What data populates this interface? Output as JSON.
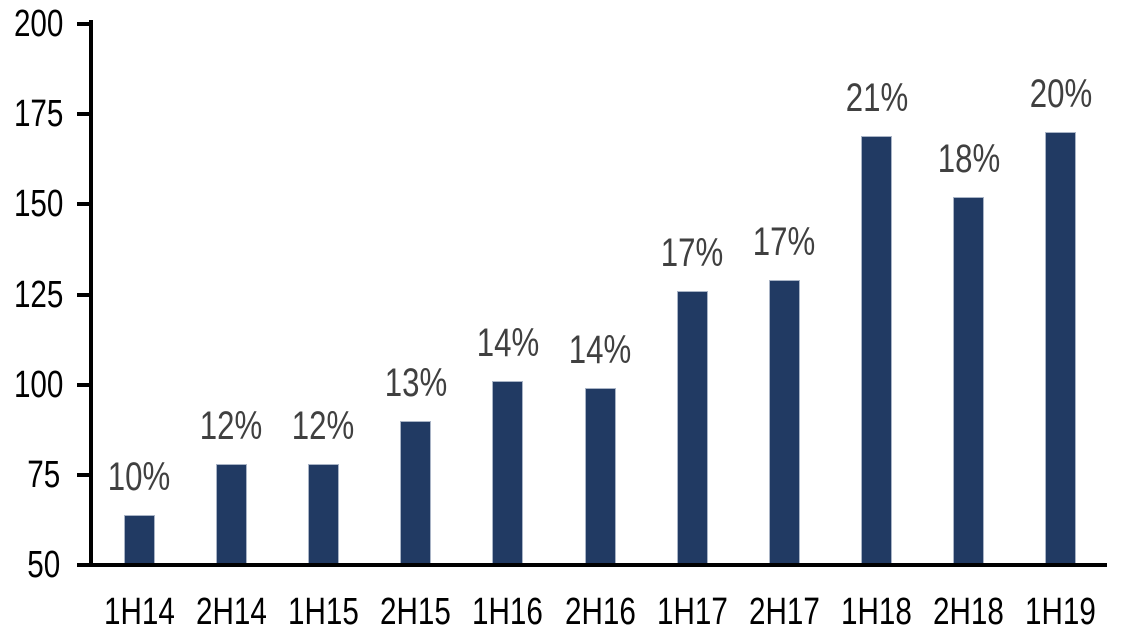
{
  "chart_data": {
    "type": "bar",
    "title": "",
    "xlabel": "",
    "ylabel": "",
    "categories": [
      "1H14",
      "2H14",
      "1H15",
      "2H15",
      "1H16",
      "2H16",
      "1H17",
      "2H17",
      "1H18",
      "2H18",
      "1H19"
    ],
    "values": [
      64,
      78,
      78,
      90,
      101,
      99,
      126,
      129,
      169,
      152,
      170
    ],
    "bar_labels": [
      "10%",
      "12%",
      "12%",
      "13%",
      "14%",
      "14%",
      "17%",
      "17%",
      "21%",
      "18%",
      "20%"
    ],
    "ylim": [
      50,
      200
    ],
    "yticks": [
      50,
      75,
      100,
      125,
      150,
      175,
      200
    ],
    "grid": false,
    "legend": false,
    "colors": {
      "bar_fill": "#213A63",
      "bar_border": "#A9B4C6",
      "data_label": "#404040",
      "axis_line": "#000000",
      "tick_label": "#000000"
    }
  }
}
